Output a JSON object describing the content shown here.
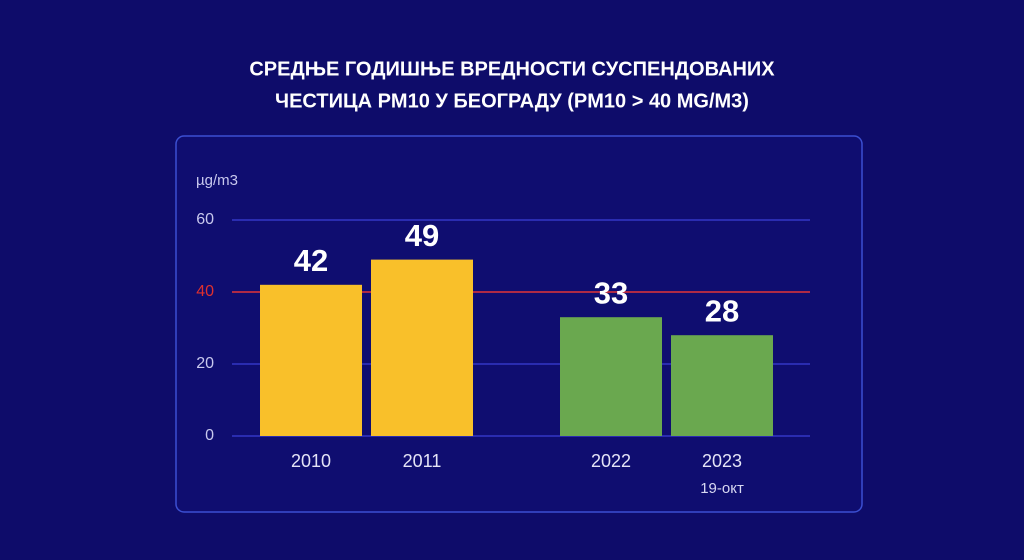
{
  "chart_data": {
    "type": "bar",
    "title_lines": [
      "СРЕДЊЕ ГОДИШЊЕ ВРЕДНОСТИ СУСПЕНДОВАНИХ",
      "ЧЕСТИЦА PM10 У БЕОГРАДУ (PM10 > 40 MG/M3)"
    ],
    "y_label": "µg/m3",
    "categories": [
      "2010",
      "2011",
      "2022",
      "2023"
    ],
    "sublabels": [
      null,
      null,
      null,
      "19-окт"
    ],
    "values": [
      42,
      49,
      33,
      28
    ],
    "colors": [
      "#f9c02a",
      "#f9c02a",
      "#6aa84f",
      "#6aa84f"
    ],
    "ylim": [
      0,
      60
    ],
    "yticks": [
      0,
      20,
      40,
      60
    ],
    "grid": true,
    "grid_color": "#3a3fd6",
    "threshold": 40,
    "threshold_color": "#e0302e"
  }
}
